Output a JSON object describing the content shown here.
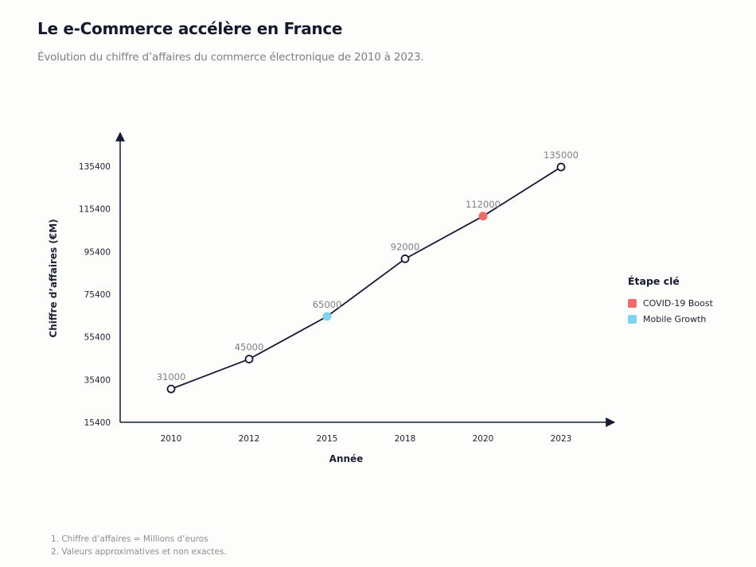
{
  "header": {
    "title": "Le e-Commerce accélère en France",
    "subtitle": "Évolution du chiffre d’affaires du commerce électronique de 2010 à 2023."
  },
  "chart_data": {
    "type": "line",
    "title": "Le e-Commerce accélère en France",
    "subtitle": "Évolution du chiffre d’affaires du commerce électronique de 2010 à 2023.",
    "xlabel": "Année",
    "ylabel": "Chiffre d’affaires (€M)",
    "categories": [
      "2010",
      "2012",
      "2015",
      "2018",
      "2020",
      "2023"
    ],
    "series": [
      {
        "name": "Chiffre d’affaires",
        "values": [
          31000,
          45000,
          65000,
          92000,
          112000,
          135000
        ],
        "color": "#161b33"
      }
    ],
    "data_labels": [
      "31000",
      "45000",
      "65000",
      "92000",
      "112000",
      "135000"
    ],
    "highlights": [
      {
        "category": "2015",
        "value": 65000,
        "legend": "Mobile Growth",
        "color": "#7fd3f0"
      },
      {
        "category": "2020",
        "value": 112000,
        "legend": "COVID-19 Boost",
        "color": "#f26b6b"
      }
    ],
    "yticks": [
      15400,
      35400,
      55400,
      75400,
      95400,
      115400,
      135400
    ],
    "ylim": [
      15400,
      135400
    ],
    "grid": false,
    "legend": {
      "title": "Étape clé",
      "placement": "right",
      "items": [
        {
          "label": "COVID-19 Boost",
          "color": "#f26b6b"
        },
        {
          "label": "Mobile Growth",
          "color": "#7fd3f0"
        }
      ]
    }
  },
  "footnotes": [
    "1. Chiffre d’affaires = Millions d’euros",
    "2. Valeurs approximatives et non exactes."
  ]
}
